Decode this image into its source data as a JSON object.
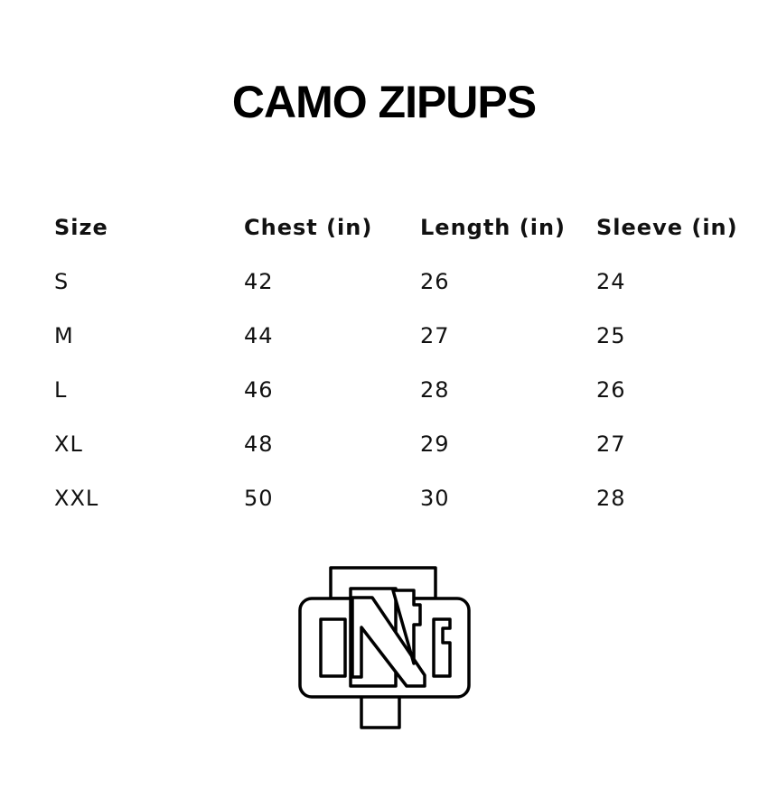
{
  "title": "CAMO ZIPUPS",
  "table": {
    "headers": [
      "Size",
      "Chest (in)",
      "Length (in)",
      "Sleeve (in)"
    ],
    "rows": [
      [
        "S",
        "42",
        "26",
        "24"
      ],
      [
        "M",
        "44",
        "27",
        "25"
      ],
      [
        "L",
        "46",
        "28",
        "26"
      ],
      [
        "XL",
        "48",
        "29",
        "27"
      ],
      [
        "XXL",
        "50",
        "30",
        "28"
      ]
    ]
  },
  "logo": {
    "text": "ONTG"
  }
}
